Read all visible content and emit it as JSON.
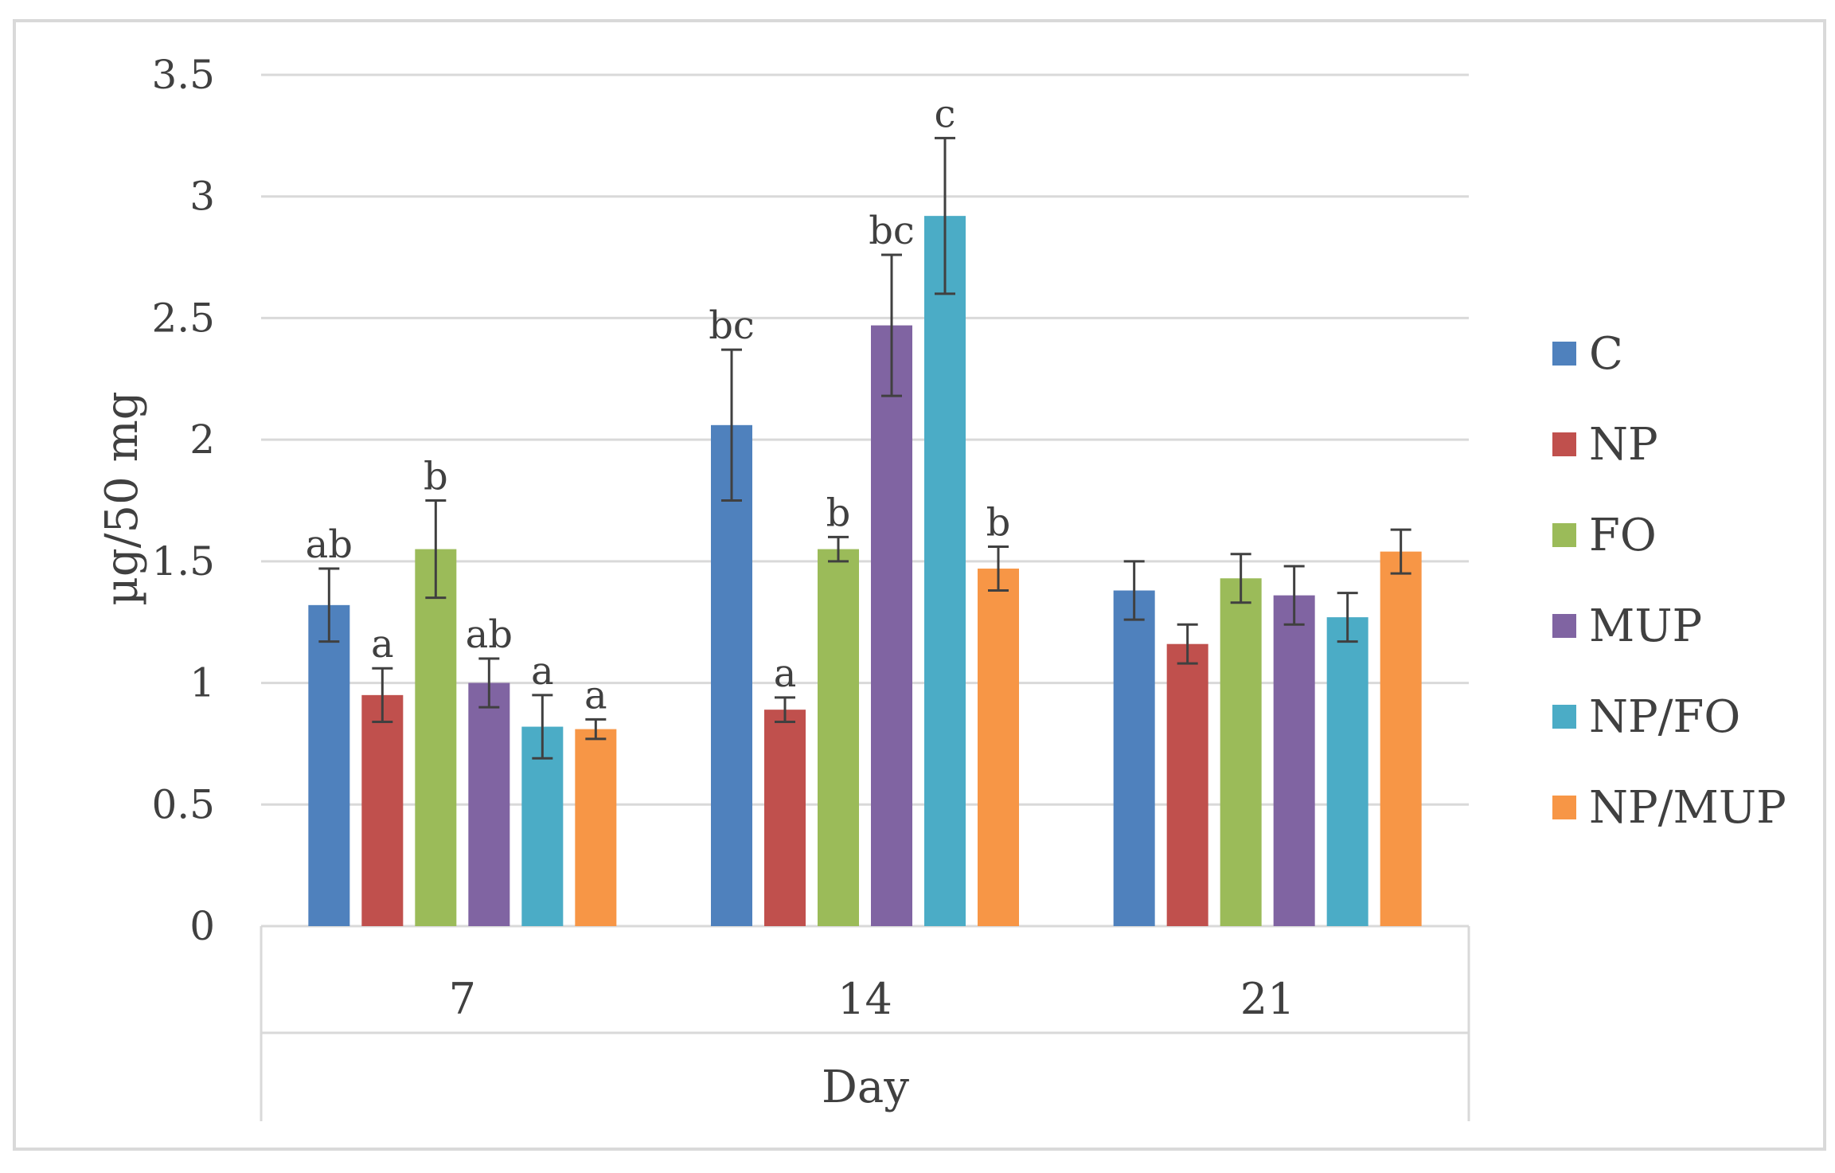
{
  "chart_data": {
    "type": "bar",
    "xlabel": "Day",
    "ylabel": "µg/50 mg",
    "ylim": [
      0,
      3.5
    ],
    "yticks": [
      "0",
      "0.5",
      "1",
      "1.5",
      "2",
      "2.5",
      "3",
      "3.5"
    ],
    "grid": true,
    "legend_position": "right",
    "categories": [
      "7",
      "14",
      "21"
    ],
    "series": [
      {
        "name": "C",
        "color": "#4F81BD",
        "values": [
          1.32,
          2.06,
          1.38
        ],
        "errors": [
          0.15,
          0.31,
          0.12
        ],
        "labels": [
          "ab",
          "bc",
          ""
        ]
      },
      {
        "name": "NP",
        "color": "#C0504D",
        "values": [
          0.95,
          0.89,
          1.16
        ],
        "errors": [
          0.11,
          0.05,
          0.08
        ],
        "labels": [
          "a",
          "a",
          ""
        ]
      },
      {
        "name": "FO",
        "color": "#9BBB59",
        "values": [
          1.55,
          1.55,
          1.43
        ],
        "errors": [
          0.2,
          0.05,
          0.1
        ],
        "labels": [
          "b",
          "b",
          ""
        ]
      },
      {
        "name": "MUP",
        "color": "#8064A2",
        "values": [
          1.0,
          2.47,
          1.36
        ],
        "errors": [
          0.1,
          0.29,
          0.12
        ],
        "labels": [
          "ab",
          "bc",
          ""
        ]
      },
      {
        "name": "NP/FO",
        "color": "#4BACC6",
        "values": [
          0.82,
          2.92,
          1.27
        ],
        "errors": [
          0.13,
          0.32,
          0.1
        ],
        "labels": [
          "a",
          "c",
          ""
        ]
      },
      {
        "name": "NP/MUP",
        "color": "#F79646",
        "values": [
          0.81,
          1.47,
          1.54
        ],
        "errors": [
          0.04,
          0.09,
          0.09
        ],
        "labels": [
          "a",
          "b",
          ""
        ]
      }
    ]
  }
}
